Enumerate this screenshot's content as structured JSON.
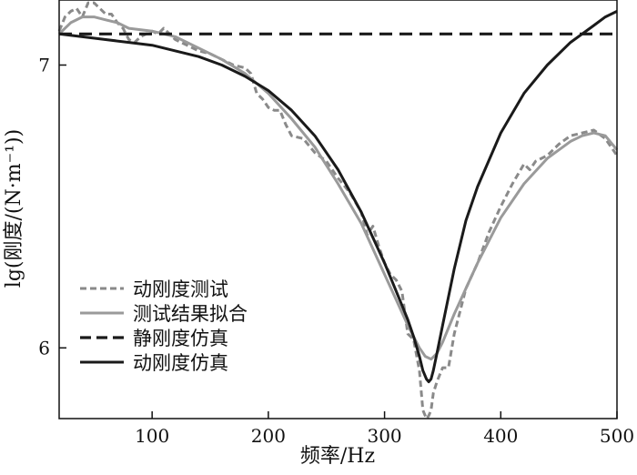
{
  "chart_data": {
    "type": "line",
    "xlabel": "频率/Hz",
    "ylabel": "lg(刚度/(N·m⁻¹))",
    "xlim": [
      20,
      500
    ],
    "ylim": [
      5.75,
      7.23
    ],
    "x_ticks": [
      "100",
      "200",
      "300",
      "400",
      "500"
    ],
    "y_ticks": [
      "6",
      "7"
    ],
    "grid": false,
    "legend_position": "bottom-left",
    "series": [
      {
        "name": "动刚度测试",
        "style": "dashed",
        "color": "#8a8a8a",
        "x": [
          20,
          25,
          30,
          35,
          40,
          45,
          50,
          55,
          60,
          65,
          70,
          75,
          80,
          85,
          90,
          95,
          100,
          105,
          110,
          115,
          120,
          130,
          140,
          150,
          160,
          170,
          180,
          185,
          190,
          195,
          200,
          205,
          210,
          215,
          220,
          230,
          240,
          250,
          260,
          270,
          280,
          285,
          290,
          295,
          300,
          305,
          310,
          315,
          320,
          325,
          330,
          333,
          336,
          338,
          340,
          342,
          345,
          350,
          355,
          360,
          370,
          380,
          390,
          400,
          410,
          420,
          425,
          430,
          440,
          450,
          460,
          470,
          480,
          490,
          500
        ],
        "y": [
          7.12,
          7.17,
          7.19,
          7.2,
          7.17,
          7.22,
          7.22,
          7.2,
          7.18,
          7.18,
          7.15,
          7.13,
          7.09,
          7.08,
          7.1,
          7.11,
          7.12,
          7.11,
          7.13,
          7.11,
          7.09,
          7.07,
          7.05,
          7.04,
          7.02,
          7.0,
          6.99,
          6.97,
          6.9,
          6.88,
          6.85,
          6.84,
          6.84,
          6.79,
          6.75,
          6.74,
          6.69,
          6.66,
          6.6,
          6.55,
          6.48,
          6.4,
          6.43,
          6.36,
          6.3,
          6.26,
          6.24,
          6.2,
          6.05,
          6.03,
          5.92,
          5.78,
          5.75,
          5.76,
          5.78,
          5.84,
          5.88,
          5.93,
          5.93,
          6.05,
          6.21,
          6.3,
          6.41,
          6.5,
          6.58,
          6.65,
          6.63,
          6.66,
          6.68,
          6.72,
          6.75,
          6.76,
          6.77,
          6.74,
          6.68
        ]
      },
      {
        "name": "测试结果拟合",
        "style": "solid",
        "color": "#9a9a9a",
        "x": [
          20,
          30,
          40,
          50,
          60,
          70,
          80,
          100,
          120,
          140,
          160,
          180,
          200,
          220,
          240,
          260,
          280,
          300,
          310,
          320,
          330,
          335,
          340,
          345,
          350,
          360,
          380,
          400,
          420,
          440,
          460,
          470,
          480,
          490,
          500
        ],
        "y": [
          7.11,
          7.15,
          7.17,
          7.17,
          7.16,
          7.15,
          7.13,
          7.12,
          7.1,
          7.06,
          7.02,
          6.97,
          6.9,
          6.81,
          6.71,
          6.58,
          6.44,
          6.26,
          6.17,
          6.08,
          6.0,
          5.97,
          5.96,
          5.98,
          6.02,
          6.12,
          6.3,
          6.46,
          6.58,
          6.67,
          6.73,
          6.75,
          6.76,
          6.75,
          6.7
        ]
      },
      {
        "name": "静刚度仿真",
        "style": "dashed",
        "color": "#1a1a1a",
        "x": [
          20,
          500
        ],
        "y": [
          7.11,
          7.11
        ]
      },
      {
        "name": "动刚度仿真",
        "style": "solid",
        "color": "#1a1a1a",
        "x": [
          20,
          40,
          60,
          80,
          100,
          120,
          140,
          160,
          180,
          200,
          220,
          240,
          260,
          280,
          300,
          310,
          320,
          325,
          330,
          333,
          336,
          338,
          340,
          342,
          345,
          350,
          360,
          370,
          380,
          400,
          420,
          440,
          460,
          480,
          490,
          500
        ],
        "y": [
          7.11,
          7.1,
          7.09,
          7.08,
          7.07,
          7.05,
          7.03,
          7.0,
          6.96,
          6.91,
          6.84,
          6.75,
          6.63,
          6.48,
          6.3,
          6.2,
          6.1,
          6.04,
          5.97,
          5.92,
          5.89,
          5.88,
          5.89,
          5.92,
          5.98,
          6.08,
          6.28,
          6.45,
          6.57,
          6.76,
          6.9,
          7.0,
          7.08,
          7.14,
          7.17,
          7.19
        ]
      }
    ]
  }
}
